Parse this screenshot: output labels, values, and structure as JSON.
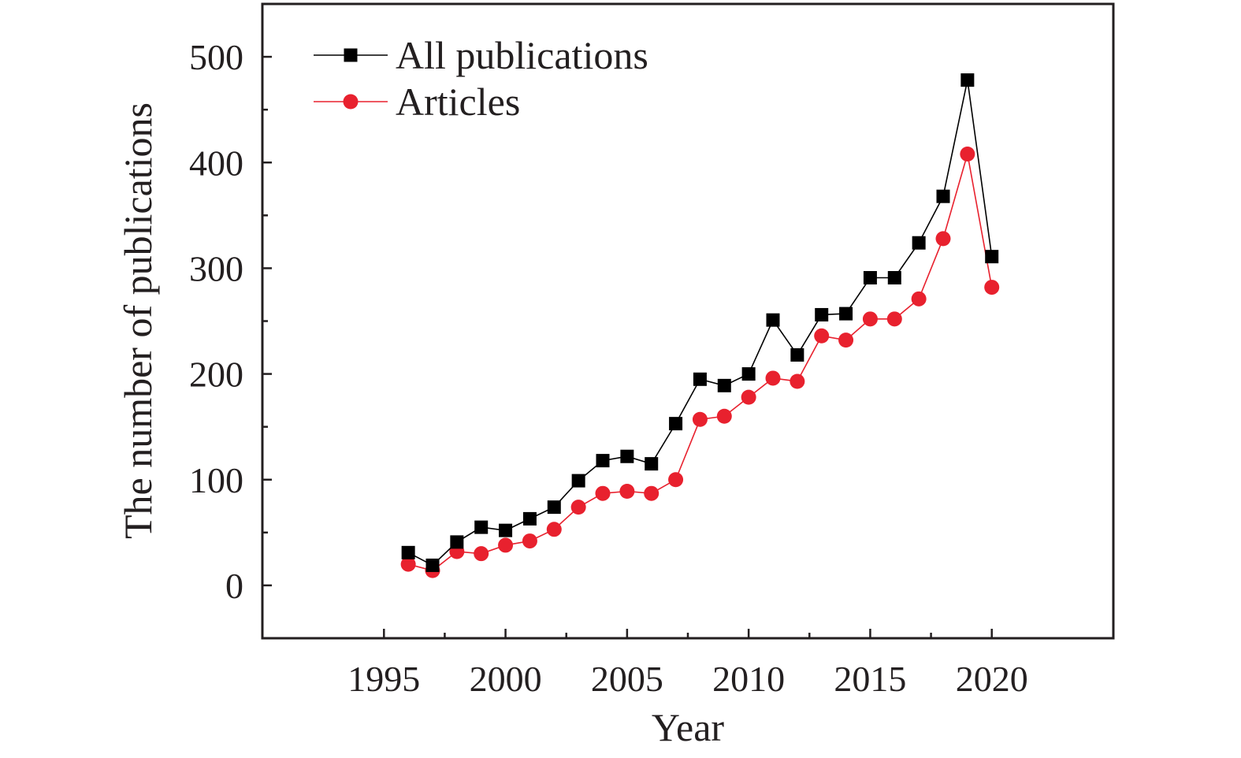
{
  "chart_data": {
    "type": "line",
    "xlabel": "Year",
    "ylabel": "The number of publications",
    "xlim": [
      1990,
      2025
    ],
    "ylim": [
      -50,
      550
    ],
    "x_ticks": [
      1995,
      2000,
      2005,
      2010,
      2015,
      2020
    ],
    "y_ticks": [
      0,
      100,
      200,
      300,
      400,
      500
    ],
    "grid": false,
    "legend_position": "top-left",
    "x": [
      1996,
      1997,
      1998,
      1999,
      2000,
      2001,
      2002,
      2003,
      2004,
      2005,
      2006,
      2007,
      2008,
      2009,
      2010,
      2011,
      2012,
      2013,
      2014,
      2015,
      2016,
      2017,
      2018,
      2019,
      2020
    ],
    "series": [
      {
        "name": "All publications",
        "color": "#000000",
        "marker": "square",
        "values": [
          31,
          19,
          41,
          55,
          52,
          63,
          74,
          99,
          118,
          122,
          115,
          153,
          195,
          189,
          200,
          251,
          218,
          256,
          257,
          291,
          291,
          324,
          368,
          478,
          311
        ]
      },
      {
        "name": "Articles",
        "color": "#e8212e",
        "marker": "circle",
        "values": [
          20,
          14,
          32,
          30,
          38,
          42,
          53,
          74,
          87,
          89,
          87,
          100,
          157,
          160,
          178,
          196,
          193,
          236,
          232,
          252,
          252,
          271,
          328,
          408,
          282
        ]
      }
    ]
  }
}
